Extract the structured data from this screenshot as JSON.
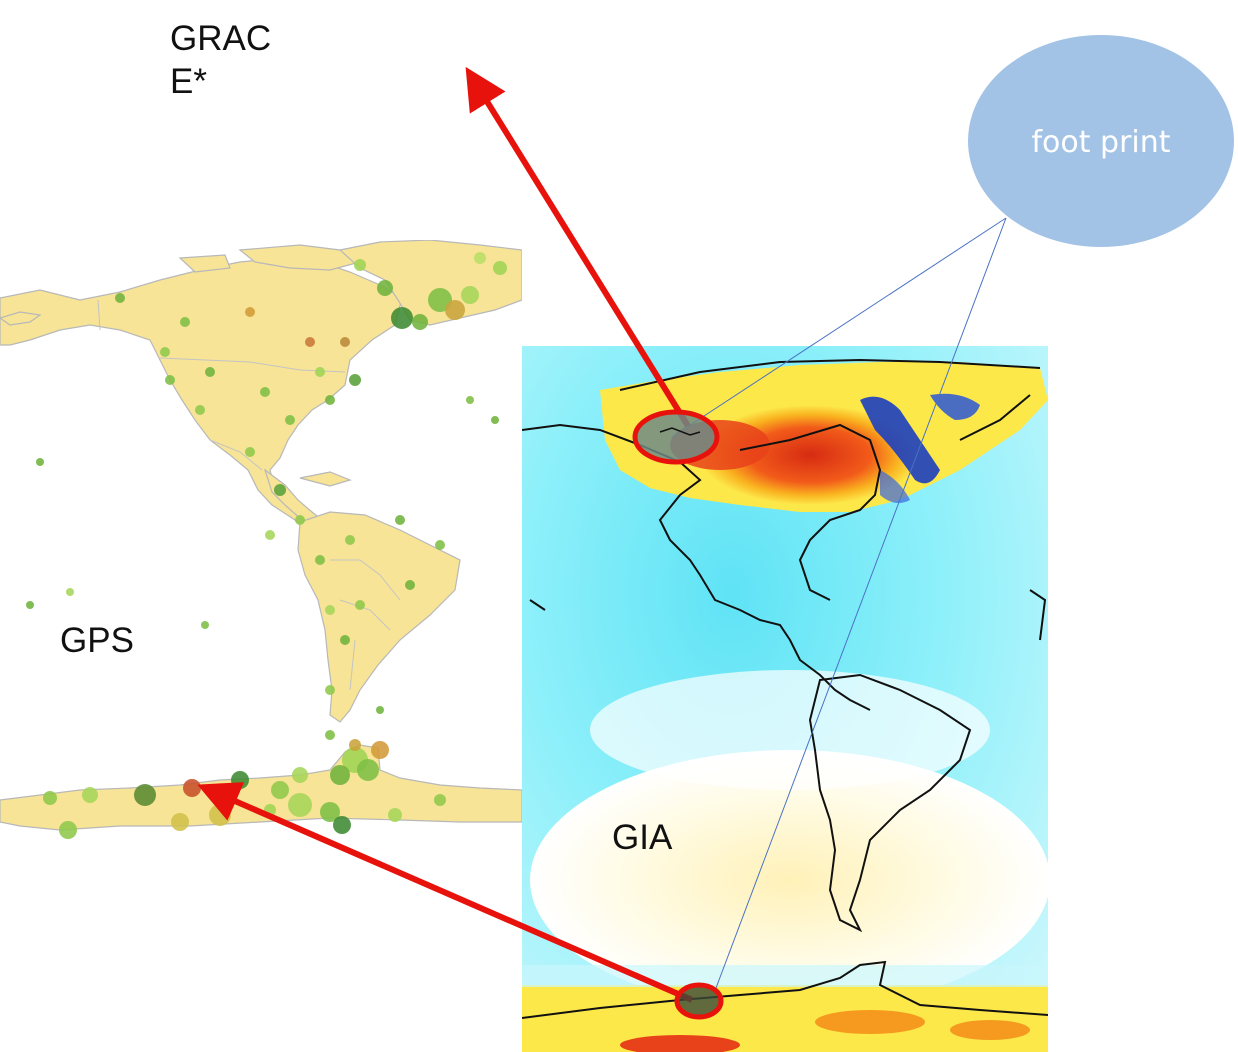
{
  "labels": {
    "grace_line1": "GRAC",
    "grace_line2": "E*",
    "gps": "GPS",
    "gia": "GIA",
    "callout": "foot print"
  },
  "colors": {
    "arrow": "#e8120c",
    "callout_fill": "#a3c3e6",
    "callout_text": "#ffffff",
    "leader_line": "#4a72c4",
    "land_gps": "#f7e496",
    "ocean_gia": "#8eeaf6",
    "uplift_red": "#e8421a",
    "uplift_orange": "#f59a1e",
    "subsidence_blue": "#1c3fbf"
  },
  "icons": {
    "gps_station": "green-dot-icon",
    "grace_target": "arrow-head-icon"
  }
}
